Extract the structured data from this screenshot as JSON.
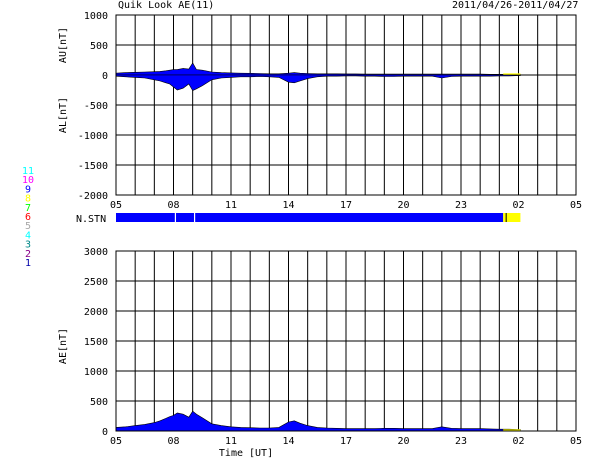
{
  "header": {
    "title": "Quik Look AE(11)",
    "date_range": "2011/04/26-2011/04/27"
  },
  "chart_data": [
    {
      "type": "area",
      "panel": "AU/AL",
      "ylabel_top": "AU[nT]",
      "ylabel_bottom": "AL[nT]",
      "ylim": [
        -2000,
        1000
      ],
      "yticks": [
        "1000",
        "500",
        "0",
        "-500",
        "-1000",
        "-1500",
        "-2000"
      ],
      "xticks": [
        "05",
        "08",
        "11",
        "14",
        "17",
        "20",
        "23",
        "02",
        "05"
      ],
      "xlim_hours": [
        5,
        29
      ],
      "data_end_hour": 26.1,
      "grid": true,
      "series": [
        {
          "color": "#0000ff",
          "x": [
            5,
            5.5,
            6,
            6.5,
            7,
            7.3,
            7.6,
            7.8,
            8,
            8.2,
            8.5,
            8.8,
            9,
            9.2,
            9.5,
            10,
            10.5,
            11,
            11.5,
            12,
            12.5,
            13,
            13.5,
            14,
            14.3,
            14.6,
            15,
            15.5,
            16,
            16.5,
            17,
            17.5,
            18,
            18.5,
            19,
            19.5,
            20,
            20.5,
            21,
            21.5,
            22,
            22.5,
            23,
            23.5,
            24,
            24.5,
            25,
            25.5,
            26,
            26.1
          ],
          "values": [
            30,
            40,
            45,
            50,
            55,
            60,
            70,
            80,
            90,
            90,
            110,
            100,
            200,
            90,
            80,
            50,
            40,
            35,
            30,
            28,
            25,
            20,
            20,
            30,
            40,
            30,
            25,
            20,
            20,
            20,
            18,
            18,
            15,
            15,
            15,
            15,
            15,
            15,
            15,
            15,
            15,
            15,
            15,
            15,
            15,
            12,
            12,
            10,
            10,
            10
          ]
        },
        {
          "color": "#0000ff",
          "x": [
            5,
            5.5,
            6,
            6.5,
            7,
            7.3,
            7.6,
            7.8,
            8,
            8.2,
            8.5,
            8.8,
            9,
            9.2,
            9.5,
            10,
            10.5,
            11,
            11.5,
            12,
            12.5,
            13,
            13.5,
            14,
            14.3,
            14.6,
            15,
            15.5,
            16,
            16.5,
            17,
            17.5,
            18,
            18.5,
            19,
            19.5,
            20,
            20.5,
            21,
            21.5,
            22,
            22.5,
            23,
            23.5,
            24,
            24.5,
            25,
            25.5,
            26,
            26.1
          ],
          "values": [
            -20,
            -30,
            -40,
            -50,
            -80,
            -100,
            -130,
            -150,
            -200,
            -250,
            -220,
            -150,
            -260,
            -230,
            -180,
            -80,
            -50,
            -40,
            -30,
            -30,
            -25,
            -30,
            -40,
            -120,
            -130,
            -100,
            -60,
            -30,
            -20,
            -20,
            -15,
            -15,
            -20,
            -20,
            -25,
            -25,
            -20,
            -20,
            -20,
            -20,
            -50,
            -25,
            -20,
            -20,
            -20,
            -20,
            -15,
            -15,
            -10,
            -10
          ]
        }
      ]
    },
    {
      "type": "area",
      "panel": "AE",
      "ylabel": "AE[nT]",
      "xlabel": "Time [UT]",
      "ylim": [
        0,
        3000
      ],
      "yticks": [
        "3000",
        "2500",
        "2000",
        "1500",
        "1000",
        "500",
        "0"
      ],
      "xticks": [
        "05",
        "08",
        "11",
        "14",
        "17",
        "20",
        "23",
        "02",
        "05"
      ],
      "xlim_hours": [
        5,
        29
      ],
      "data_end_hour": 26.1,
      "grid": true,
      "series": [
        {
          "color": "#0000ff",
          "x": [
            5,
            5.5,
            6,
            6.5,
            7,
            7.3,
            7.6,
            7.8,
            8,
            8.2,
            8.5,
            8.8,
            9,
            9.2,
            9.5,
            10,
            10.5,
            11,
            11.5,
            12,
            12.5,
            13,
            13.5,
            14,
            14.3,
            14.6,
            15,
            15.5,
            16,
            16.5,
            17,
            17.5,
            18,
            18.5,
            19,
            19.5,
            20,
            20.5,
            21,
            21.5,
            22,
            22.5,
            23,
            23.5,
            24,
            24.5,
            25,
            25.5,
            26,
            26.1
          ],
          "values": [
            60,
            70,
            90,
            110,
            140,
            170,
            210,
            240,
            260,
            300,
            280,
            230,
            330,
            280,
            220,
            120,
            90,
            70,
            60,
            55,
            50,
            50,
            60,
            150,
            170,
            130,
            90,
            60,
            50,
            45,
            40,
            40,
            40,
            40,
            45,
            45,
            40,
            40,
            40,
            40,
            70,
            45,
            40,
            40,
            40,
            35,
            30,
            30,
            25,
            25
          ]
        }
      ]
    }
  ],
  "station_bar": {
    "label": "N.STN",
    "color": "#0000ff",
    "gap_color": "#ffffff",
    "tail_color": "#ffff00",
    "gaps_hours": [
      8.1,
      9.1
    ],
    "tail_start_hour": 25.2,
    "end_hour": 26.1
  },
  "legend": {
    "items": [
      {
        "label": "11",
        "color": "#00ffff"
      },
      {
        "label": "10",
        "color": "#ff00ff"
      },
      {
        "label": "9",
        "color": "#0000ff"
      },
      {
        "label": "8",
        "color": "#ffff00"
      },
      {
        "label": "7",
        "color": "#00ff00"
      },
      {
        "label": "6",
        "color": "#ff0000"
      },
      {
        "label": "5",
        "color": "#aaaaaa"
      },
      {
        "label": "4",
        "color": "#00ffff"
      },
      {
        "label": "3",
        "color": "#008888"
      },
      {
        "label": "2",
        "color": "#880088"
      },
      {
        "label": "1",
        "color": "#0000aa"
      }
    ]
  }
}
